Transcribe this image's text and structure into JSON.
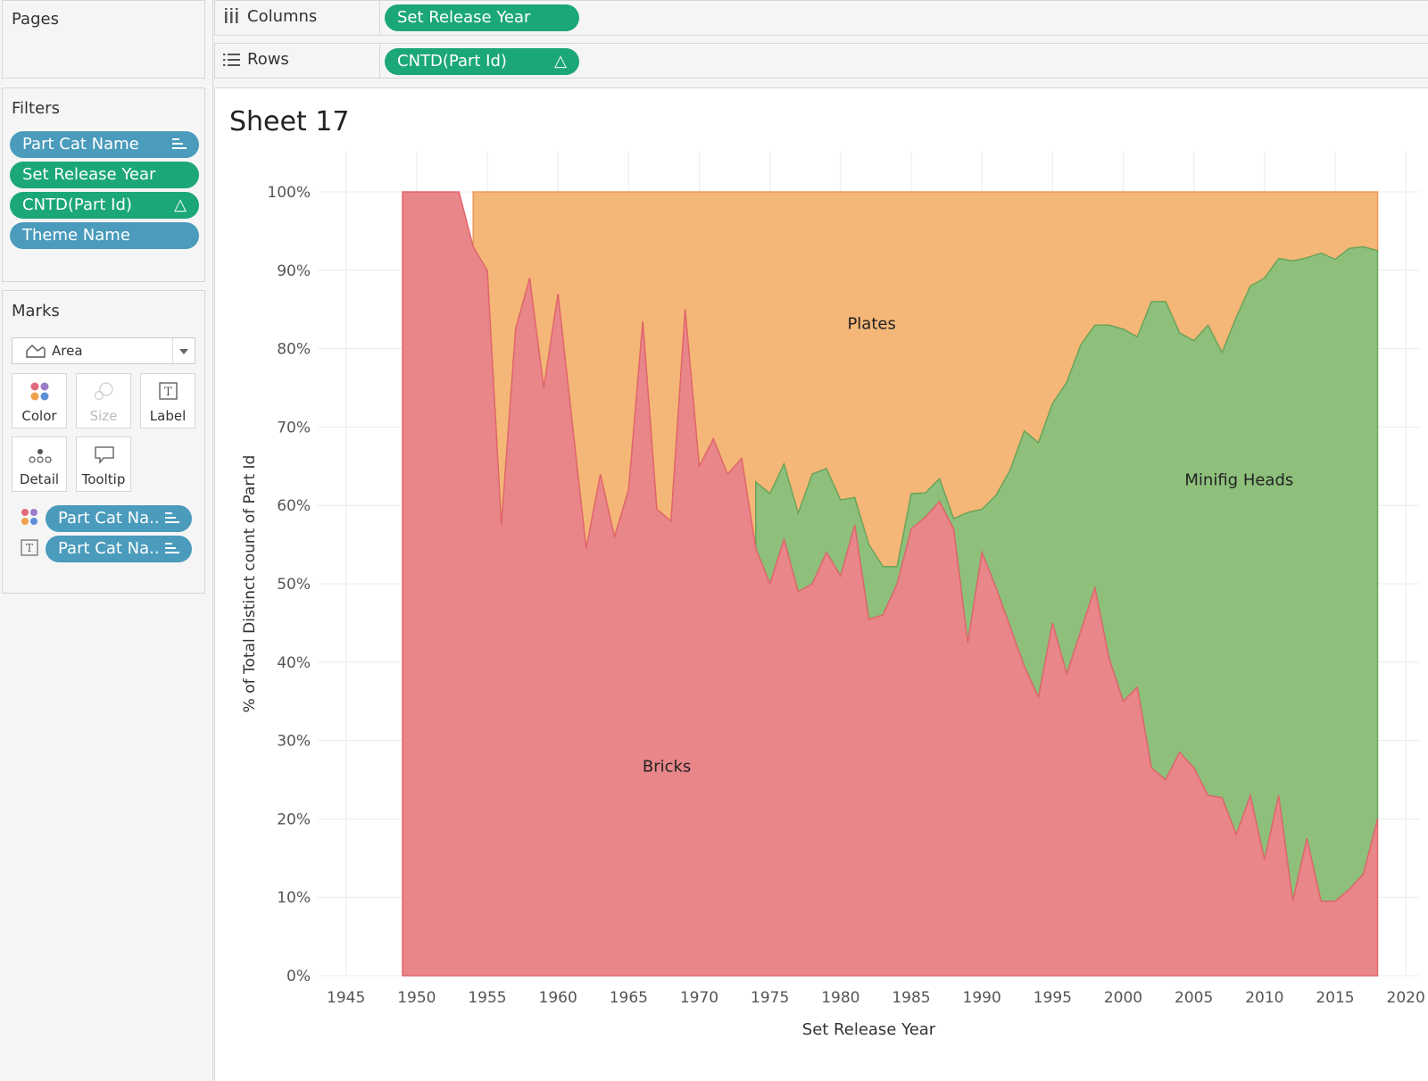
{
  "pages": {
    "title": "Pages"
  },
  "filters": {
    "title": "Filters",
    "items": [
      {
        "label": "Part Cat Name",
        "color": "#4a9bbc",
        "icon": "sort-icon"
      },
      {
        "label": "Set Release Year",
        "color": "#1ba77a",
        "icon": ""
      },
      {
        "label": "CNTD(Part Id)",
        "color": "#1ba77a",
        "icon": "delta-icon"
      },
      {
        "label": "Theme Name",
        "color": "#4a9bbc",
        "icon": ""
      }
    ]
  },
  "marks": {
    "title": "Marks",
    "type": "Area",
    "cards": [
      {
        "label": "Color",
        "icon": "color-dots-icon",
        "enabled": true
      },
      {
        "label": "Size",
        "icon": "size-icon",
        "enabled": false
      },
      {
        "label": "Label",
        "icon": "label-icon",
        "enabled": true
      },
      {
        "label": "Detail",
        "icon": "detail-icon",
        "enabled": true
      },
      {
        "label": "Tooltip",
        "icon": "tooltip-icon",
        "enabled": true
      }
    ],
    "fields": [
      {
        "label": "Part Cat Na..",
        "type_icon": "color-dots-icon"
      },
      {
        "label": "Part Cat Na..",
        "type_icon": "label-icon"
      }
    ]
  },
  "shelves": {
    "columns": {
      "label": "Columns",
      "pill": "Set Release Year"
    },
    "rows": {
      "label": "Rows",
      "pill": "CNTD(Part Id)"
    }
  },
  "sheet": {
    "title": "Sheet 17"
  },
  "chart_data": {
    "type": "area",
    "stacked": "percent",
    "xlabel": "Set Release Year",
    "ylabel": "% of Total Distinct count of Part Id",
    "xlim": [
      1943,
      2021
    ],
    "ylim": [
      0,
      100
    ],
    "x_ticks": [
      "1945",
      "1950",
      "1955",
      "1960",
      "1965",
      "1970",
      "1975",
      "1980",
      "1985",
      "1990",
      "1995",
      "2000",
      "2005",
      "2010",
      "2015",
      "2020"
    ],
    "y_ticks": [
      "0%",
      "10%",
      "20%",
      "30%",
      "40%",
      "50%",
      "60%",
      "70%",
      "80%",
      "90%",
      "100%"
    ],
    "grid": true,
    "series": [
      {
        "name": "Bricks",
        "color": "#e8868a",
        "points": [
          [
            1949,
            100
          ],
          [
            1953,
            100
          ],
          [
            1954,
            93
          ],
          [
            1955,
            90
          ],
          [
            1956,
            57.5
          ],
          [
            1957,
            82.5
          ],
          [
            1958,
            89
          ],
          [
            1959,
            75
          ],
          [
            1960,
            87
          ],
          [
            1962,
            54.5
          ],
          [
            1963,
            64
          ],
          [
            1964,
            56
          ],
          [
            1965,
            62
          ],
          [
            1966,
            83.5
          ],
          [
            1967,
            59.5
          ],
          [
            1968,
            58
          ],
          [
            1969,
            85
          ],
          [
            1970,
            65
          ],
          [
            1971,
            68.5
          ],
          [
            1972,
            64
          ],
          [
            1973,
            66
          ],
          [
            1974,
            54.5
          ],
          [
            1975,
            50
          ],
          [
            1976,
            55.7
          ],
          [
            1977,
            49
          ],
          [
            1978,
            50
          ],
          [
            1979,
            54
          ],
          [
            1980,
            51
          ],
          [
            1981,
            57.5
          ],
          [
            1982,
            45.5
          ],
          [
            1983,
            46
          ],
          [
            1984,
            50
          ],
          [
            1985,
            57
          ],
          [
            1986,
            58.5
          ],
          [
            1987,
            60.5
          ],
          [
            1988,
            57
          ],
          [
            1989,
            42.5
          ],
          [
            1990,
            54
          ],
          [
            1991,
            49.5
          ],
          [
            1992,
            44.5
          ],
          [
            1993,
            39.5
          ],
          [
            1994,
            35.5
          ],
          [
            1995,
            45
          ],
          [
            1996,
            38.5
          ],
          [
            1997,
            44
          ],
          [
            1998,
            49.5
          ],
          [
            1999,
            40.5
          ],
          [
            2000,
            35
          ],
          [
            2001,
            36.8
          ],
          [
            2002,
            26.5
          ],
          [
            2003,
            25
          ],
          [
            2004,
            28.5
          ],
          [
            2005,
            26.5
          ],
          [
            2006,
            23
          ],
          [
            2007,
            22.7
          ],
          [
            2008,
            18
          ],
          [
            2009,
            23
          ],
          [
            2010,
            14.8
          ],
          [
            2011,
            23
          ],
          [
            2012,
            9.5
          ],
          [
            2013,
            17.5
          ],
          [
            2014,
            9.5
          ],
          [
            2015,
            9.5
          ],
          [
            2016,
            11
          ],
          [
            2017,
            13
          ],
          [
            2018,
            20
          ]
        ]
      },
      {
        "name": "Minifig Heads",
        "color": "#8ec07c",
        "points": [
          [
            1974,
            63
          ],
          [
            1975,
            61.5
          ],
          [
            1976,
            65.3
          ],
          [
            1977,
            59
          ],
          [
            1978,
            64
          ],
          [
            1979,
            64.7
          ],
          [
            1980,
            60.7
          ],
          [
            1981,
            61
          ],
          [
            1982,
            55
          ],
          [
            1983,
            52.2
          ],
          [
            1984,
            52.2
          ],
          [
            1985,
            61.5
          ],
          [
            1986,
            61.6
          ],
          [
            1987,
            63.4
          ],
          [
            1988,
            58.3
          ],
          [
            1989,
            59.1
          ],
          [
            1990,
            59.5
          ],
          [
            1991,
            61.3
          ],
          [
            1992,
            64.5
          ],
          [
            1993,
            69.5
          ],
          [
            1994,
            68
          ],
          [
            1995,
            73
          ],
          [
            1996,
            75.7
          ],
          [
            1997,
            80.5
          ],
          [
            1998,
            83
          ],
          [
            1999,
            83
          ],
          [
            2000,
            82.5
          ],
          [
            2001,
            81.5
          ],
          [
            2002,
            86
          ],
          [
            2003,
            86
          ],
          [
            2004,
            82
          ],
          [
            2005,
            81
          ],
          [
            2006,
            83
          ],
          [
            2007,
            79.5
          ],
          [
            2008,
            84
          ],
          [
            2009,
            88
          ],
          [
            2010,
            89
          ],
          [
            2011,
            91.5
          ],
          [
            2012,
            91.2
          ],
          [
            2013,
            91.6
          ],
          [
            2014,
            92.2
          ],
          [
            2015,
            91.4
          ],
          [
            2016,
            92.8
          ],
          [
            2017,
            93
          ],
          [
            2018,
            92.5
          ]
        ]
      },
      {
        "name": "Plates",
        "color": "#f4b778",
        "points": [
          [
            1954,
            100
          ],
          [
            2018,
            100
          ]
        ]
      }
    ]
  }
}
